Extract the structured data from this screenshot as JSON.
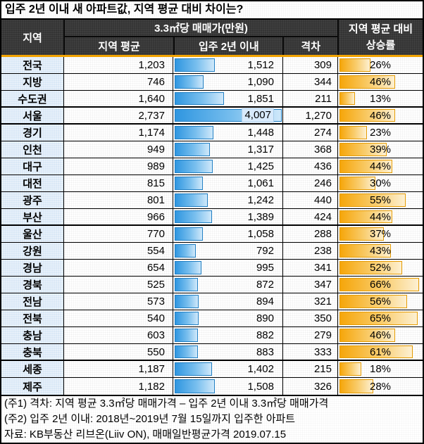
{
  "title": "입주 2년 이내 새 아파트값, 지역 평균 대비 차이는?",
  "header": {
    "region": "지역",
    "price_group": "3.3㎡당 매매가(만원)",
    "avg": "지역 평균",
    "new": "입주 2년 이내",
    "gap": "격차",
    "rate_line1": "지역 평균 대비",
    "rate_line2": "상승률"
  },
  "chart_data": {
    "type": "table",
    "title": "입주 2년 이내 새 아파트값, 지역 평균 대비 차이는?",
    "unit": "3.3㎡당 매매가(만원)",
    "columns": [
      "지역",
      "지역 평균",
      "입주 2년 이내",
      "격차",
      "지역 평균 대비 상승률"
    ],
    "rows": [
      {
        "region": "전국",
        "avg": "1,203",
        "new": "1,512",
        "gap": "309",
        "rate": "26%"
      },
      {
        "region": "지방",
        "avg": "746",
        "new": "1,090",
        "gap": "344",
        "rate": "46%"
      },
      {
        "region": "수도권",
        "avg": "1,640",
        "new": "1,851",
        "gap": "211",
        "rate": "13%"
      },
      {
        "region": "서울",
        "avg": "2,737",
        "new": "4,007",
        "gap": "1,270",
        "rate": "46%"
      },
      {
        "region": "경기",
        "avg": "1,174",
        "new": "1,448",
        "gap": "274",
        "rate": "23%"
      },
      {
        "region": "인천",
        "avg": "949",
        "new": "1,317",
        "gap": "368",
        "rate": "39%"
      },
      {
        "region": "대구",
        "avg": "989",
        "new": "1,425",
        "gap": "436",
        "rate": "44%"
      },
      {
        "region": "대전",
        "avg": "815",
        "new": "1,061",
        "gap": "246",
        "rate": "30%"
      },
      {
        "region": "광주",
        "avg": "801",
        "new": "1,242",
        "gap": "440",
        "rate": "55%"
      },
      {
        "region": "부산",
        "avg": "966",
        "new": "1,389",
        "gap": "424",
        "rate": "44%"
      },
      {
        "region": "울산",
        "avg": "770",
        "new": "1,058",
        "gap": "288",
        "rate": "37%"
      },
      {
        "region": "강원",
        "avg": "554",
        "new": "792",
        "gap": "238",
        "rate": "43%"
      },
      {
        "region": "경남",
        "avg": "654",
        "new": "995",
        "gap": "341",
        "rate": "52%"
      },
      {
        "region": "경북",
        "avg": "525",
        "new": "872",
        "gap": "347",
        "rate": "66%"
      },
      {
        "region": "전남",
        "avg": "573",
        "new": "894",
        "gap": "321",
        "rate": "56%"
      },
      {
        "region": "전북",
        "avg": "540",
        "new": "890",
        "gap": "350",
        "rate": "65%"
      },
      {
        "region": "충남",
        "avg": "603",
        "new": "882",
        "gap": "279",
        "rate": "46%"
      },
      {
        "region": "충북",
        "avg": "550",
        "new": "883",
        "gap": "333",
        "rate": "61%"
      },
      {
        "region": "세종",
        "avg": "1,187",
        "new": "1,402",
        "gap": "215",
        "rate": "18%"
      },
      {
        "region": "제주",
        "avg": "1,182",
        "new": "1,508",
        "gap": "326",
        "rate": "28%"
      }
    ],
    "bar_scale": {
      "price_max": 4007,
      "rate_max_pct": 66
    },
    "group_breaks": [
      2,
      3,
      9,
      17
    ],
    "legend_position": "none",
    "grid": "table-lines",
    "colors": {
      "price_bar": "#2f96e0",
      "rate_bar": "#f6a60a",
      "header_bg": "#343434",
      "region_col_bg": "#d9e8f6",
      "accent_line": "#f2a300"
    }
  },
  "footer": {
    "note1": "(주1) 격차: 지역 평균 3.3㎡당 매매가격 – 입주 2년 이내 3.3㎡당 매매가격",
    "note2": "(주2) 입주 2년 이내: 2018년~2019년 7월 15일까지 입주한 아파트",
    "source": "자료: KB부동산 리브온(Liiv ON), 매매일반평균가격 2019.07.15"
  }
}
